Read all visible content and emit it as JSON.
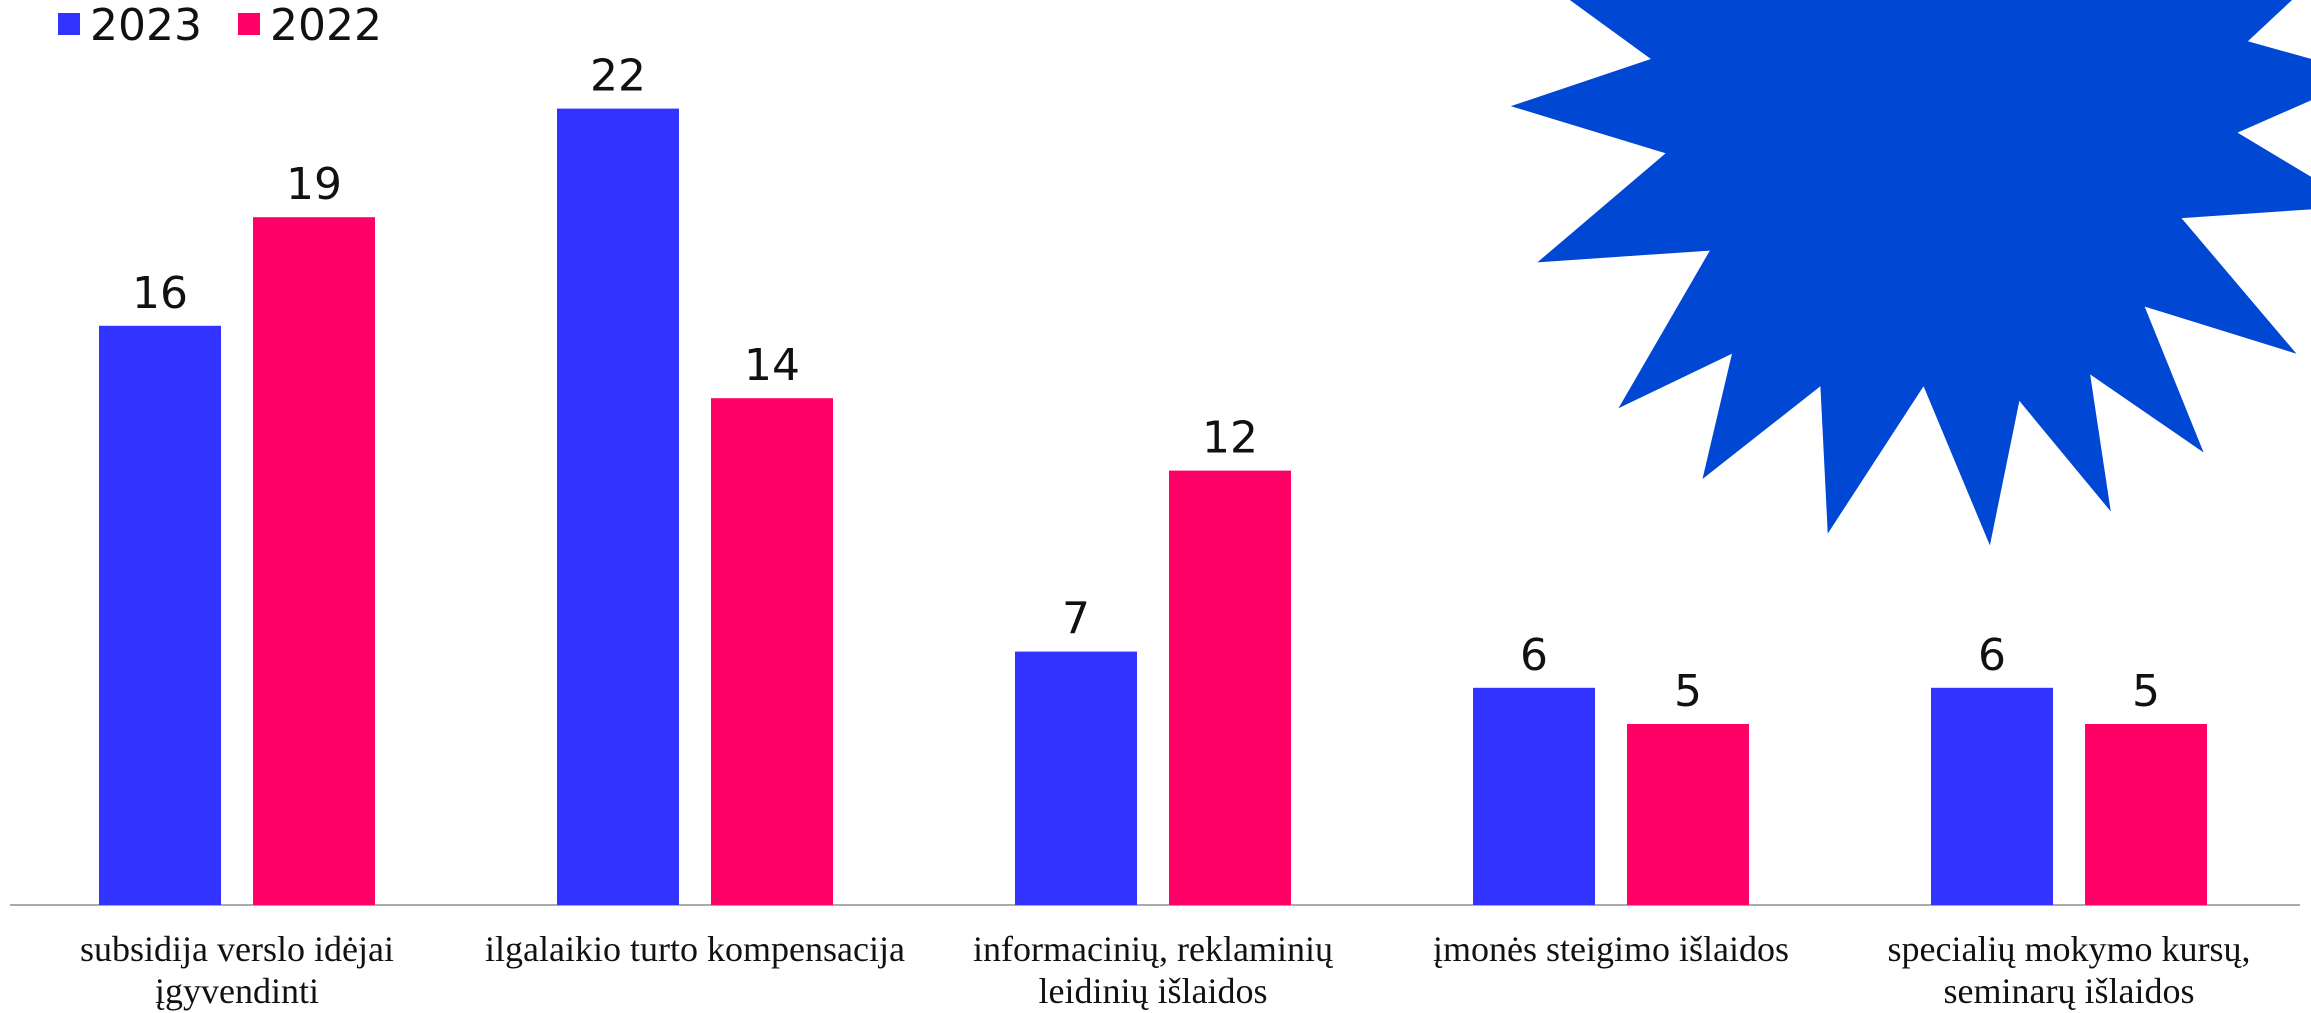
{
  "chart_data": {
    "type": "bar",
    "categories": [
      "subsidija verslo idėjai įgyvendinti",
      "ilgalaikio turto kompensacija",
      "informacinių, reklaminių leidinių išlaidos",
      "įmonės steigimo išlaidos",
      "specialių mokymo kursų, seminarų išlaidos"
    ],
    "series": [
      {
        "name": "2023",
        "color": "#3333ff",
        "values": [
          16,
          22,
          7,
          6,
          6
        ]
      },
      {
        "name": "2022",
        "color": "#ff0066",
        "values": [
          19,
          14,
          12,
          5,
          5
        ]
      }
    ],
    "ylim": [
      0,
      25
    ],
    "legend": "top-left",
    "value_labels_shown": true
  }
}
